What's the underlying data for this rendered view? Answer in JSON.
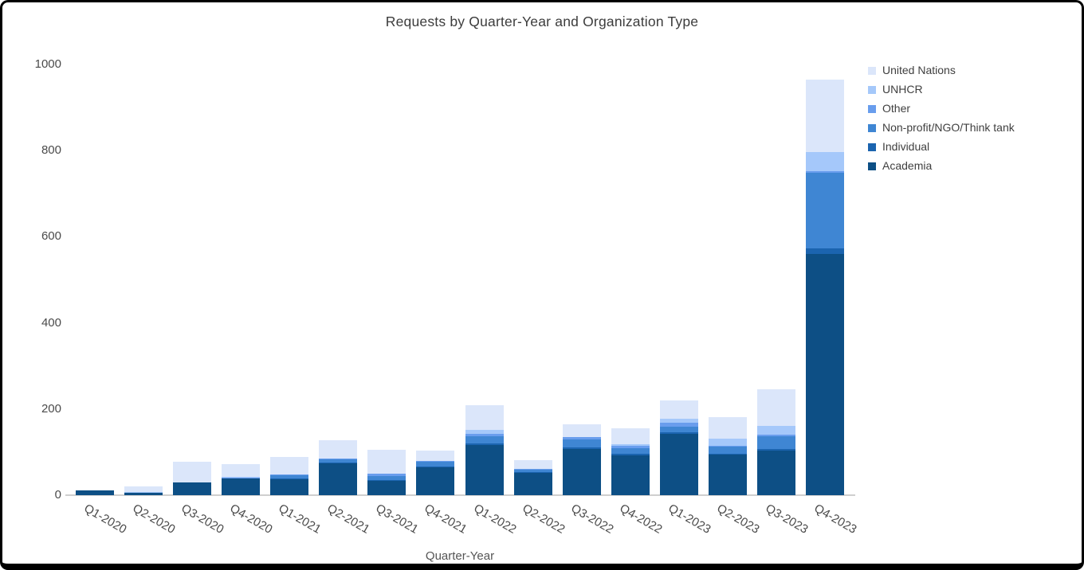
{
  "chart_data": {
    "type": "bar",
    "stacked": true,
    "title": "Requests by Quarter-Year and Organization Type",
    "xlabel": "Quarter-Year",
    "ylabel": "",
    "ylim": [
      0,
      1000
    ],
    "yticks": [
      0,
      200,
      400,
      600,
      800,
      1000
    ],
    "grid": false,
    "legend_position": "top-right",
    "legend_order_top_to_bottom": [
      "United Nations",
      "UNHCR",
      "Other",
      "Non-profit/NGO/Think tank",
      "Individual",
      "Academia"
    ],
    "categories": [
      "Q1-2020",
      "Q2-2020",
      "Q3-2020",
      "Q4-2020",
      "Q1-2021",
      "Q2-2021",
      "Q3-2021",
      "Q4-2021",
      "Q1-2022",
      "Q2-2022",
      "Q3-2022",
      "Q4-2022",
      "Q1-2023",
      "Q2-2023",
      "Q3-2023",
      "Q4-2023"
    ],
    "series_order": "bottom-to-top",
    "series": [
      {
        "name": "Academia",
        "color": "#0d4f85",
        "values": [
          12,
          6,
          30,
          39,
          38,
          74,
          34,
          64,
          116,
          52,
          108,
          93,
          142,
          94,
          103,
          560
        ]
      },
      {
        "name": "Individual",
        "color": "#1b64af",
        "values": [
          0,
          0,
          0,
          0,
          1,
          2,
          1,
          3,
          4,
          2,
          3,
          3,
          4,
          3,
          4,
          13
        ]
      },
      {
        "name": "Non-profit/NGO/Think tank",
        "color": "#3f86d3",
        "values": [
          0,
          0,
          0,
          0,
          8,
          8,
          10,
          10,
          17,
          5,
          19,
          13,
          13,
          15,
          30,
          175
        ]
      },
      {
        "name": "Other",
        "color": "#699ded",
        "values": [
          0,
          0,
          0,
          1,
          1,
          1,
          5,
          3,
          5,
          2,
          5,
          5,
          9,
          3,
          3,
          4
        ]
      },
      {
        "name": "UNHCR",
        "color": "#a5c8fa",
        "values": [
          0,
          2,
          0,
          2,
          0,
          0,
          0,
          0,
          9,
          0,
          0,
          4,
          9,
          17,
          20,
          45
        ]
      },
      {
        "name": "United Nations",
        "color": "#dbe6fa",
        "values": [
          0,
          13,
          48,
          30,
          41,
          43,
          55,
          24,
          57,
          20,
          30,
          37,
          43,
          50,
          85,
          168
        ]
      }
    ]
  },
  "styles": {
    "axis_line_color": "#cfcfcf",
    "tick_text_color": "#4a4a4a",
    "title_color": "#3c3c3c"
  }
}
